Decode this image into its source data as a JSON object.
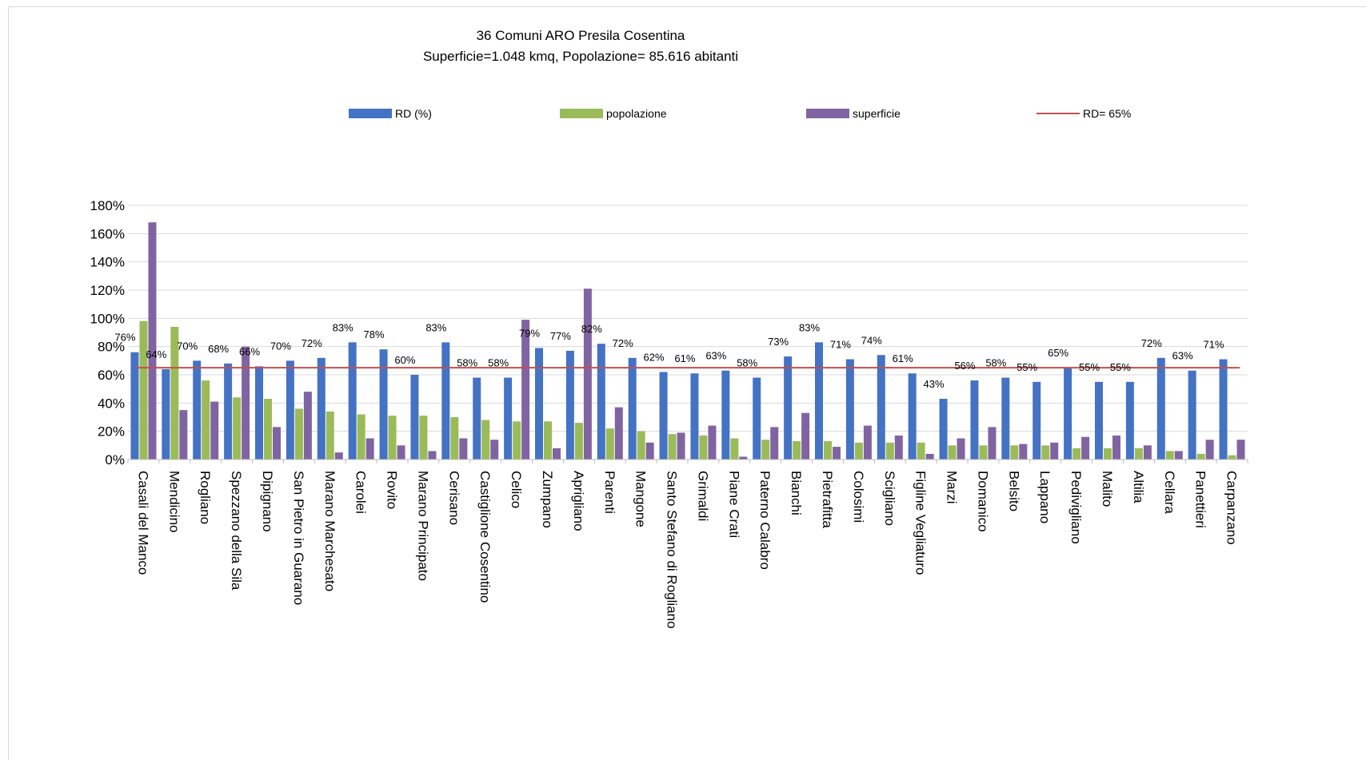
{
  "chart_data": {
    "type": "bar",
    "title": "36 Comuni ARO Presila Cosentina",
    "subtitle": "Superficie=1.048 kmq, Popolazione= 85.616 abitanti",
    "ylim": [
      0,
      180
    ],
    "yticks": [
      0,
      20,
      40,
      60,
      80,
      100,
      120,
      140,
      160,
      180
    ],
    "ytick_labels": [
      "0%",
      "20%",
      "40%",
      "60%",
      "80%",
      "100%",
      "120%",
      "140%",
      "160%",
      "180%"
    ],
    "grid": true,
    "legend_position": "top",
    "categories": [
      "Casali del Manco",
      "Mendicino",
      "Rogliano",
      "Spezzano della Sila",
      "Dipignano",
      "San Pietro in Guarano",
      "Marano Marchesato",
      "Carolei",
      "Rovito",
      "Marano Principato",
      "Cerisano",
      "Castiglione Cosentino",
      "Celico",
      "Zumpano",
      "Aprigliano",
      "Parenti",
      "Mangone",
      "Santo Stefano di Rogliano",
      "Grimaldi",
      "Piane Crati",
      "Paterno Calabro",
      "Bianchi",
      "Pietrafitta",
      "Colosimi",
      "Scigliano",
      "Figline Vegliaturo",
      "Marzi",
      "Domanico",
      "Belsito",
      "Lappano",
      "Pedivigliano",
      "Malito",
      "Altilia",
      "Cellara",
      "Panettieri",
      "Carpanzano"
    ],
    "series": [
      {
        "name": "RD (%)",
        "color": "#4472c4",
        "values": [
          76,
          64,
          70,
          68,
          66,
          70,
          72,
          83,
          78,
          60,
          83,
          58,
          58,
          79,
          77,
          82,
          72,
          62,
          61,
          63,
          58,
          73,
          83,
          71,
          74,
          61,
          43,
          56,
          58,
          55,
          65,
          55,
          55,
          72,
          63,
          71
        ],
        "labels": [
          "76%",
          "64%",
          "70%",
          "68%",
          "66%",
          "70%",
          "72%",
          "83%",
          "78%",
          "60%",
          "83%",
          "58%",
          "58%",
          "79%",
          "77%",
          "82%",
          "72%",
          "62%",
          "61%",
          "63%",
          "58%",
          "73%",
          "83%",
          "71%",
          "74%",
          "61%",
          "43%",
          "56%",
          "58%",
          "55%",
          "65%",
          "55%",
          "55%",
          "72%",
          "63%",
          "71%"
        ]
      },
      {
        "name": "popolazione",
        "color": "#9bbb59",
        "values": [
          98,
          94,
          56,
          44,
          43,
          36,
          34,
          32,
          31,
          31,
          30,
          28,
          27,
          27,
          26,
          22,
          20,
          18,
          17,
          15,
          14,
          13,
          13,
          12,
          12,
          12,
          10,
          10,
          10,
          10,
          8,
          8,
          8,
          6,
          4,
          3
        ]
      },
      {
        "name": "superficie",
        "color": "#8064a2",
        "values": [
          168,
          35,
          41,
          80,
          23,
          48,
          5,
          15,
          10,
          6,
          15,
          14,
          99,
          8,
          121,
          37,
          12,
          19,
          24,
          2,
          23,
          33,
          9,
          24,
          17,
          4,
          15,
          23,
          11,
          12,
          16,
          17,
          10,
          6,
          14,
          14
        ]
      }
    ],
    "reference_line": {
      "name": "RD= 65%",
      "value": 65,
      "color": "#c0504d"
    }
  }
}
